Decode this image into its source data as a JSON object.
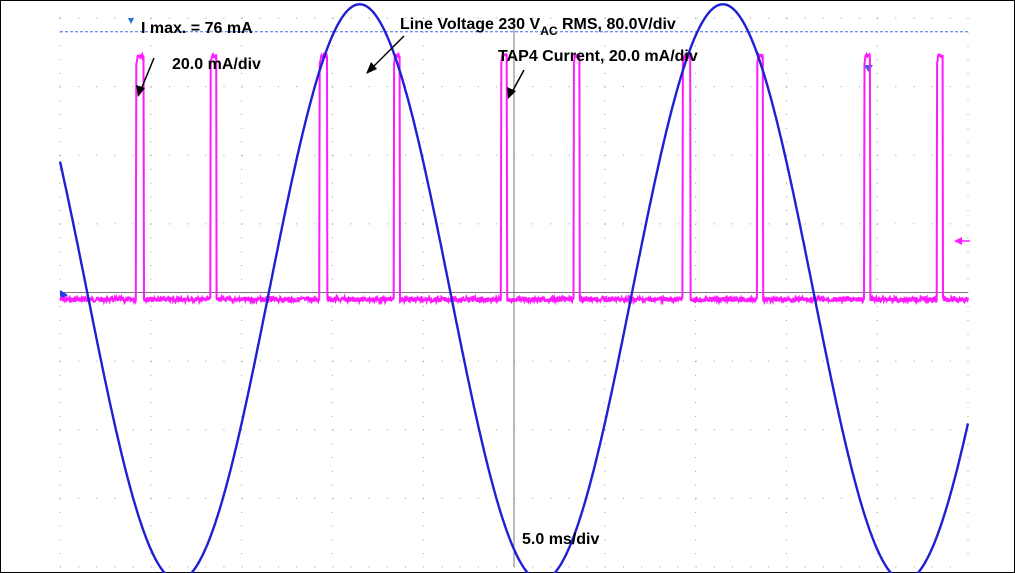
{
  "chart_data": {
    "type": "line",
    "title": "",
    "grid": true,
    "x": {
      "divisions": 10,
      "scale_label": "5.0 ms/div",
      "unit": "ms",
      "range": [
        0,
        50
      ]
    },
    "y": {
      "divisions": 8
    },
    "annotations": {
      "imax": "I max. = 76 mA",
      "imax_scale": "20.0 mA/div",
      "voltage_a": "Line Voltage 230 V",
      "voltage_sub": "AC",
      "voltage_b": " RMS, 80.0V/div",
      "current": "TAP4 Current, 20.0 mA/div",
      "timebase": "5.0 ms/div"
    },
    "series": [
      {
        "name": "Line Voltage",
        "color": "#1f1fd6",
        "scale": "80.0V/div",
        "rms_v": 230,
        "peak_div": 4.2,
        "frequency_hz": 50,
        "peak_times_ms": [
          16.5,
          36.5
        ],
        "trough_times_ms": [
          6.5,
          26.5,
          46.5
        ]
      },
      {
        "name": "TAP4 Current",
        "color": "#ff1aff",
        "scale": "20.0 mA/div",
        "max_ma": 76,
        "pulse_windows_ms": [
          [
            4.2,
            4.6
          ],
          [
            8.3,
            8.6
          ],
          [
            14.3,
            14.7
          ],
          [
            18.4,
            18.7
          ],
          [
            24.3,
            24.6
          ],
          [
            28.3,
            28.6
          ],
          [
            34.3,
            34.7
          ],
          [
            38.4,
            38.7
          ],
          [
            44.3,
            44.6
          ],
          [
            48.3,
            48.6
          ]
        ]
      }
    ]
  }
}
